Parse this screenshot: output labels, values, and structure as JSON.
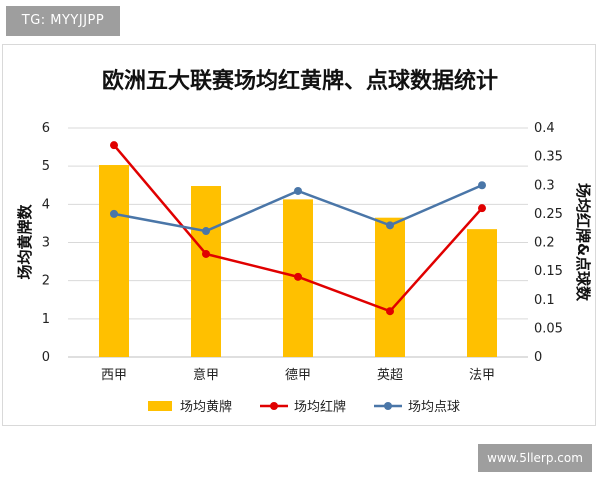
{
  "watermark_top": "TG: MYYJJPP",
  "watermark_bottom": "www.5llerp.com",
  "chart_data": {
    "type": "bar",
    "title": "欧洲五大联赛场均红黄牌、点球数据统计",
    "categories": [
      "西甲",
      "意甲",
      "德甲",
      "英超",
      "法甲"
    ],
    "ylabel_left": "场均黄牌数",
    "ylabel_right": "场均红牌&点球数",
    "ylim_left": [
      0,
      6
    ],
    "yticks_left": [
      "0",
      "1",
      "2",
      "3",
      "4",
      "5",
      "6"
    ],
    "ylim_right": [
      0,
      0.4
    ],
    "yticks_right": [
      "0",
      "0.05",
      "0.1",
      "0.15",
      "0.2",
      "0.25",
      "0.3",
      "0.35",
      "0.4"
    ],
    "grid": true,
    "legend_position": "bottom",
    "series": [
      {
        "name": "场均黄牌",
        "kind": "bar",
        "axis": "left",
        "color": "#ffc000",
        "values": [
          5.03,
          4.48,
          4.13,
          3.65,
          3.35
        ]
      },
      {
        "name": "场均红牌",
        "kind": "line",
        "axis": "right",
        "color": "#e00000",
        "values": [
          0.37,
          0.18,
          0.14,
          0.08,
          0.26
        ]
      },
      {
        "name": "场均点球",
        "kind": "line",
        "axis": "right",
        "color": "#4a76a8",
        "values": [
          0.25,
          0.22,
          0.29,
          0.23,
          0.3
        ]
      }
    ]
  }
}
